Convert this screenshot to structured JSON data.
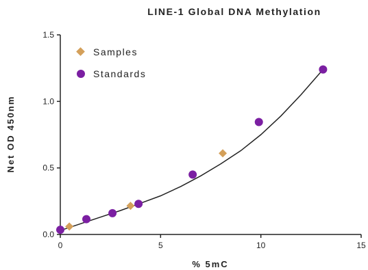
{
  "chart_data": {
    "type": "scatter",
    "title": "LINE-1 Global DNA Methylation",
    "xlabel": "% 5mC",
    "ylabel": "Net OD 450nm",
    "xlim": [
      0,
      15
    ],
    "ylim": [
      0,
      1.5
    ],
    "x_ticks": [
      "0",
      "5",
      "10",
      "15"
    ],
    "y_ticks": [
      "0.0",
      "0.5",
      "1.0",
      "1.5"
    ],
    "grid": false,
    "legend_position": "top-left",
    "fit_curve": {
      "x": [
        0,
        1,
        2,
        3,
        4,
        5,
        6,
        7,
        8,
        9,
        10,
        11,
        12,
        13.1
      ],
      "y": [
        0.03,
        0.08,
        0.13,
        0.18,
        0.235,
        0.29,
        0.36,
        0.44,
        0.53,
        0.63,
        0.75,
        0.89,
        1.05,
        1.24
      ]
    },
    "series": [
      {
        "name": "Samples",
        "marker": "diamond",
        "color": "#D4A05A",
        "x": [
          0.45,
          3.5,
          8.1
        ],
        "y": [
          0.06,
          0.215,
          0.61
        ]
      },
      {
        "name": "Standards",
        "marker": "circle",
        "color": "#7B1FA2",
        "x": [
          0.0,
          1.3,
          2.6,
          3.9,
          6.6,
          9.9,
          13.1
        ],
        "y": [
          0.035,
          0.115,
          0.16,
          0.23,
          0.45,
          0.845,
          1.24
        ]
      }
    ]
  }
}
